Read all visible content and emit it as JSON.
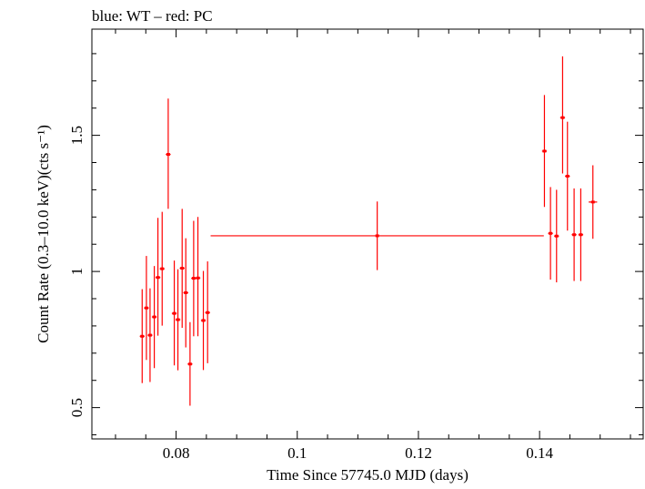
{
  "chart_data": {
    "type": "scatter",
    "title": "blue: WT – red: PC",
    "xlabel": "Time Since 57745.0 MJD (days)",
    "ylabel": "Count Rate (0.3–10.0 keV)(cts s⁻¹)",
    "xlim": [
      0.0661,
      0.1571
    ],
    "ylim": [
      0.385,
      1.89
    ],
    "x_ticks": [
      0.08,
      0.1,
      0.12,
      0.14
    ],
    "x_tick_labels": [
      "0.08",
      "0.1",
      "0.12",
      "0.14"
    ],
    "y_ticks": [
      0.5,
      1,
      1.5
    ],
    "y_tick_labels": [
      "0.5",
      "1",
      "1.5"
    ],
    "grid": false,
    "series": [
      {
        "color": "#ff0000",
        "points": [
          {
            "x": 0.0744,
            "y": 0.762,
            "xerr": 0.0004,
            "ylo": 0.59,
            "yhi": 0.935
          },
          {
            "x": 0.0751,
            "y": 0.866,
            "xerr": 0.0004,
            "ylo": 0.675,
            "yhi": 1.057
          },
          {
            "x": 0.0757,
            "y": 0.766,
            "xerr": 0.0004,
            "ylo": 0.594,
            "yhi": 0.938
          },
          {
            "x": 0.0764,
            "y": 0.833,
            "xerr": 0.0004,
            "ylo": 0.645,
            "yhi": 1.02
          },
          {
            "x": 0.077,
            "y": 0.978,
            "xerr": 0.0004,
            "ylo": 0.764,
            "yhi": 1.197
          },
          {
            "x": 0.0777,
            "y": 1.01,
            "xerr": 0.0004,
            "ylo": 0.801,
            "yhi": 1.219
          },
          {
            "x": 0.0787,
            "y": 1.43,
            "xerr": 0.0004,
            "ylo": 1.23,
            "yhi": 1.635
          },
          {
            "x": 0.0797,
            "y": 0.846,
            "xerr": 0.0004,
            "ylo": 0.655,
            "yhi": 1.04
          },
          {
            "x": 0.0803,
            "y": 0.823,
            "xerr": 0.0004,
            "ylo": 0.637,
            "yhi": 1.008
          },
          {
            "x": 0.081,
            "y": 1.012,
            "xerr": 0.0004,
            "ylo": 0.793,
            "yhi": 1.23
          },
          {
            "x": 0.0816,
            "y": 0.922,
            "xerr": 0.0004,
            "ylo": 0.721,
            "yhi": 1.122
          },
          {
            "x": 0.0823,
            "y": 0.66,
            "xerr": 0.0004,
            "ylo": 0.507,
            "yhi": 0.814
          },
          {
            "x": 0.0829,
            "y": 0.975,
            "xerr": 0.0004,
            "ylo": 0.762,
            "yhi": 1.186
          },
          {
            "x": 0.0836,
            "y": 0.976,
            "xerr": 0.0004,
            "ylo": 0.762,
            "yhi": 1.2
          },
          {
            "x": 0.0845,
            "y": 0.82,
            "xerr": 0.0004,
            "ylo": 0.638,
            "yhi": 1.002
          },
          {
            "x": 0.0852,
            "y": 0.849,
            "xerr": 0.0004,
            "ylo": 0.663,
            "yhi": 1.037
          },
          {
            "x": 0.1132,
            "y": 1.131,
            "xerr": 0.0275,
            "ylo": 1.005,
            "yhi": 1.257
          },
          {
            "x": 0.1408,
            "y": 1.442,
            "xerr": 0.0004,
            "ylo": 1.237,
            "yhi": 1.648
          },
          {
            "x": 0.1418,
            "y": 1.14,
            "xerr": 0.0004,
            "ylo": 0.97,
            "yhi": 1.31
          },
          {
            "x": 0.1428,
            "y": 1.13,
            "xerr": 0.0004,
            "ylo": 0.96,
            "yhi": 1.3
          },
          {
            "x": 0.1438,
            "y": 1.565,
            "xerr": 0.0004,
            "ylo": 1.36,
            "yhi": 1.79
          },
          {
            "x": 0.1446,
            "y": 1.35,
            "xerr": 0.0004,
            "ylo": 1.15,
            "yhi": 1.55
          },
          {
            "x": 0.1457,
            "y": 1.135,
            "xerr": 0.0004,
            "ylo": 0.965,
            "yhi": 1.305
          },
          {
            "x": 0.1468,
            "y": 1.135,
            "xerr": 0.0004,
            "ylo": 0.965,
            "yhi": 1.305
          },
          {
            "x": 0.1488,
            "y": 1.255,
            "xerr": 0.0007,
            "ylo": 1.12,
            "yhi": 1.39
          }
        ]
      }
    ]
  }
}
